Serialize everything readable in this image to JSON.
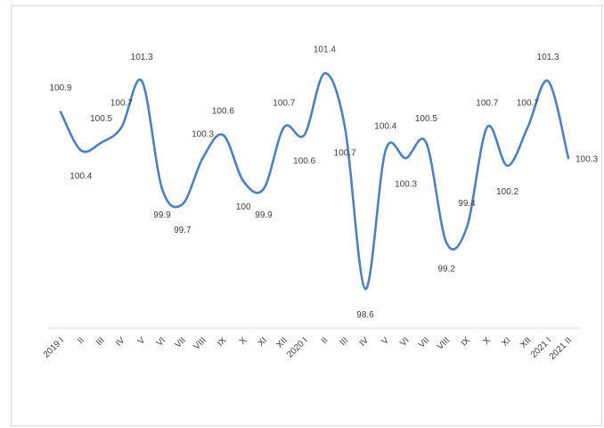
{
  "chart_data": {
    "type": "line",
    "title": "",
    "xlabel": "",
    "ylabel": "",
    "ylim": [
      98.3,
      101.6
    ],
    "grid": false,
    "legend": "none",
    "categories": [
      "2019 I",
      "II",
      "III",
      "IV",
      "V",
      "VI",
      "VII",
      "VIII",
      "IX",
      "X",
      "XI",
      "XII",
      "2020 I",
      "II",
      "III",
      "IV",
      "V",
      "VI",
      "VII",
      "VIII",
      "IX",
      "X",
      "XI",
      "XII",
      "2021 I",
      "2021 II"
    ],
    "series": [
      {
        "values": [
          100.9,
          100.4,
          100.5,
          100.7,
          101.3,
          99.9,
          99.7,
          100.3,
          100.6,
          100,
          99.9,
          100.7,
          100.6,
          101.4,
          100.7,
          98.6,
          100.4,
          100.3,
          100.5,
          99.2,
          99.4,
          100.7,
          100.2,
          100.7,
          101.3,
          100.3
        ],
        "labels": [
          "100.9",
          "100.4",
          "100.5",
          "100.7",
          "101.3",
          "99.9",
          "99.7",
          "100.3",
          "100.6",
          "100",
          "99.9",
          "100.7",
          "100.6",
          "101.4",
          "100.7",
          "98.6",
          "100.4",
          "100.3",
          "100.5",
          "99.2",
          "99.4",
          "100.7",
          "100.2",
          "100.7",
          "101.3",
          "100.3"
        ],
        "color": "#4f81bd"
      }
    ]
  },
  "colors": {
    "line": "#4f81bd",
    "axis": "#d9d9d9",
    "text": "#404040",
    "border": "#d9d9d9"
  }
}
